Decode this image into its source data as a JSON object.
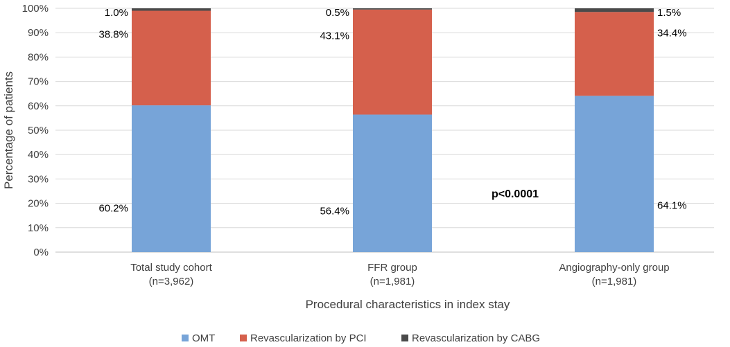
{
  "chart_data": {
    "type": "bar",
    "stacked": true,
    "title": "",
    "xlabel": "Procedural characteristics in index stay",
    "ylabel": "Percentage of patients",
    "ylim": [
      0,
      100
    ],
    "yticks": [
      "0%",
      "10%",
      "20%",
      "30%",
      "40%",
      "50%",
      "60%",
      "70%",
      "80%",
      "90%",
      "100%"
    ],
    "grid": true,
    "legend_position": "bottom",
    "categories": [
      [
        "Total study cohort",
        "(n=3,962)"
      ],
      [
        "FFR group",
        "(n=1,981)"
      ],
      [
        "Angiography-only group",
        "(n=1,981)"
      ]
    ],
    "series": [
      {
        "name": "OMT",
        "color": "#77A4D8",
        "values": [
          60.2,
          56.4,
          64.1
        ],
        "labels": [
          "60.2%",
          "56.4%",
          "64.1%"
        ]
      },
      {
        "name": "Revascularization by PCI",
        "color": "#D5604C",
        "values": [
          38.8,
          43.1,
          34.4
        ],
        "labels": [
          "38.8%",
          "43.1%",
          "34.4%"
        ]
      },
      {
        "name": "Revascularization by CABG",
        "color": "#4A4A4A",
        "values": [
          1.0,
          0.5,
          1.5
        ],
        "labels": [
          "1.0%",
          "0.5%",
          "1.5%"
        ]
      }
    ],
    "label_side": [
      "left",
      "left",
      "right"
    ],
    "annotation": "p<0.0001"
  }
}
